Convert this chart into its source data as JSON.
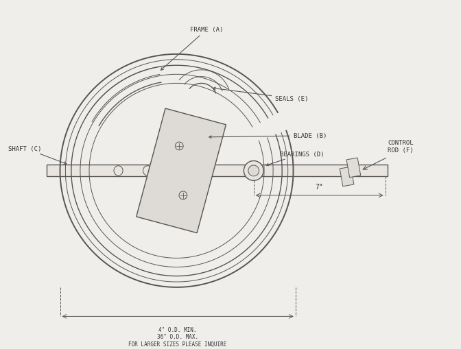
{
  "bg_color": "#f0eeea",
  "line_color": "#555555",
  "text_color": "#333333",
  "title": "",
  "labels": {
    "frame_a": "FRAME (A)",
    "seals_e": "SEALS (E)",
    "blade_b": "BLADE (B)",
    "shaft_c": "SHAFT (C)",
    "bearings_d": "BEARINGS (D)",
    "control_rod_f": "CONTROL\nROD (F)"
  },
  "dim_label_bottom": "4\" O.D. MIN.\n36\" O.D. MAX.\nFOR LARGER SIZES PLEASE INQUIRE",
  "dim_label_right": "7\"",
  "fig_width": 6.72,
  "fig_height": 5.1,
  "dpi": 100
}
